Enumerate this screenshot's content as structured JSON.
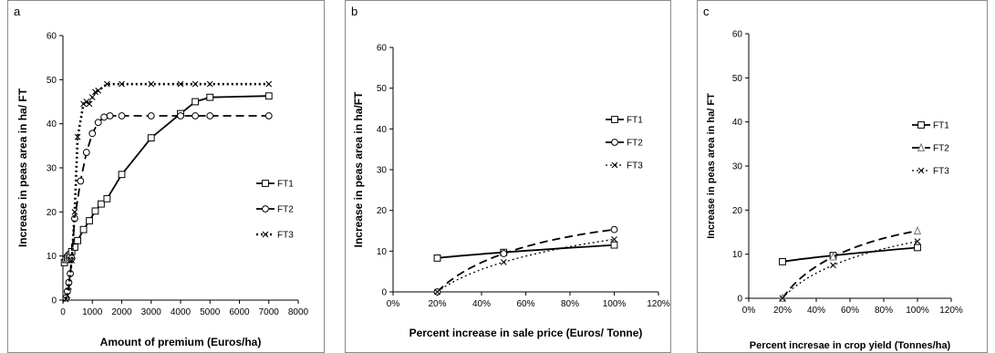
{
  "chart_data": [
    {
      "type": "line",
      "panel_label": "a",
      "xlabel": "Amount of premium (Euros/ha)",
      "ylabel": "Increase in peas area in ha/ FT",
      "xlim": [
        0,
        8000
      ],
      "ylim": [
        0,
        60
      ],
      "xticks": [
        "0",
        "1000",
        "2000",
        "3000",
        "4000",
        "5000",
        "6000",
        "7000",
        "8000"
      ],
      "yticks": [
        "0",
        "10",
        "20",
        "30",
        "40",
        "50",
        "60"
      ],
      "grid": false,
      "legend": "right",
      "series": [
        {
          "name": "FT1",
          "marker": "square",
          "dash": "solid",
          "x": [
            50,
            100,
            150,
            200,
            250,
            300,
            400,
            500,
            700,
            900,
            1100,
            1300,
            1500,
            2000,
            3000,
            4000,
            4500,
            5000,
            7000
          ],
          "y": [
            8.5,
            9.2,
            9.6,
            10,
            10.3,
            11,
            12,
            13.5,
            16,
            18,
            20.2,
            21.8,
            23,
            28.5,
            36.8,
            42.3,
            45,
            46,
            46.3
          ]
        },
        {
          "name": "FT2",
          "marker": "circle",
          "dash": "long",
          "x": [
            100,
            150,
            200,
            250,
            300,
            400,
            600,
            800,
            1000,
            1200,
            1400,
            1600,
            2000,
            3000,
            4000,
            4500,
            5000,
            7000
          ],
          "y": [
            0.5,
            2,
            4,
            6,
            9.5,
            18.5,
            27,
            33.5,
            37.8,
            40.3,
            41.5,
            41.8,
            41.8,
            41.8,
            41.8,
            41.8,
            41.8,
            41.8
          ]
        },
        {
          "name": "FT3",
          "marker": "x",
          "dash": "dot",
          "x": [
            100,
            150,
            200,
            300,
            400,
            500,
            700,
            800,
            900,
            1000,
            1100,
            1200,
            1500,
            2000,
            3000,
            4000,
            4500,
            5000,
            7000
          ],
          "y": [
            0.2,
            1,
            3,
            9,
            20,
            37,
            44.5,
            45,
            44.5,
            46,
            47.2,
            47.5,
            49,
            49,
            49,
            49,
            49,
            49,
            49
          ]
        }
      ]
    },
    {
      "type": "line",
      "panel_label": "b",
      "xlabel": "Percent increase in sale price (Euros/ Tonne)",
      "ylabel": "Increase in peas area in ha/FT",
      "xlim": [
        0,
        120
      ],
      "ylim": [
        0,
        60
      ],
      "xticks": [
        "0%",
        "20%",
        "40%",
        "60%",
        "80%",
        "100%",
        "120%"
      ],
      "yticks": [
        "0",
        "10",
        "20",
        "30",
        "40",
        "50",
        "60"
      ],
      "grid": false,
      "legend": "right",
      "series": [
        {
          "name": "FT1",
          "marker": "square",
          "dash": "solid",
          "x": [
            20,
            50,
            100
          ],
          "y": [
            8.3,
            9.7,
            11.5
          ]
        },
        {
          "name": "FT2",
          "marker": "circle",
          "dash": "long",
          "x": [
            20,
            50,
            100
          ],
          "y": [
            0,
            9.4,
            15.3
          ]
        },
        {
          "name": "FT3",
          "marker": "x",
          "dash": "dot",
          "x": [
            20,
            50,
            100
          ],
          "y": [
            0,
            7.3,
            12.9
          ]
        }
      ]
    },
    {
      "type": "line",
      "panel_label": "c",
      "xlabel": "Percent incresae in crop yield (Tonnes/ha)",
      "ylabel": "Increase in peas area in ha/ FT",
      "xlim": [
        0,
        120
      ],
      "ylim": [
        0,
        60
      ],
      "xticks": [
        "0%",
        "20%",
        "40%",
        "60%",
        "80%",
        "100%",
        "120%"
      ],
      "yticks": [
        "0",
        "10",
        "20",
        "30",
        "40",
        "50",
        "60"
      ],
      "grid": false,
      "legend": "right",
      "series": [
        {
          "name": "FT1",
          "marker": "square",
          "dash": "solid",
          "x": [
            20,
            50,
            100
          ],
          "y": [
            8.3,
            9.7,
            11.5
          ]
        },
        {
          "name": "FT2",
          "marker": "triangle",
          "dash": "long",
          "x": [
            20,
            50,
            100
          ],
          "y": [
            0,
            9.4,
            15.3
          ]
        },
        {
          "name": "FT3",
          "marker": "x",
          "dash": "dot",
          "x": [
            20,
            50,
            100
          ],
          "y": [
            0,
            7.5,
            12.9
          ]
        }
      ]
    }
  ]
}
